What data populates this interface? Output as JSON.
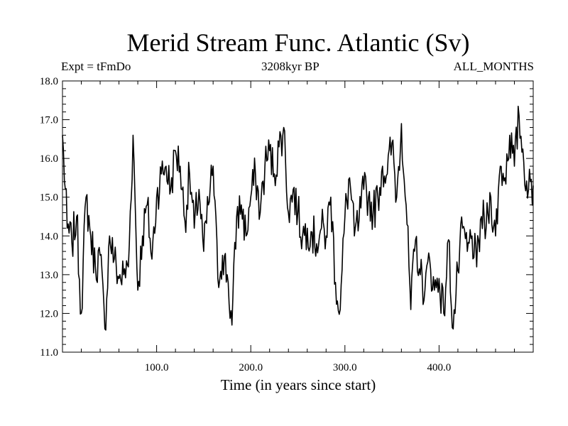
{
  "header": {
    "title": "Merid Stream Func. Atlantic (Sv)",
    "expt": "Expt = tFmDo",
    "period": "3208kyr BP",
    "months": "ALL_MONTHS"
  },
  "chart_data": {
    "type": "line",
    "title": "Merid Stream Func. Atlantic (Sv)",
    "xlabel": "Time (in years since start)",
    "ylabel": "",
    "xlim": [
      0,
      500
    ],
    "ylim": [
      11.0,
      18.0
    ],
    "xticks": [
      100,
      200,
      300,
      400
    ],
    "xtick_labels": [
      "100.0",
      "200.0",
      "300.0",
      "400.0"
    ],
    "yticks": [
      11,
      12,
      13,
      14,
      15,
      16,
      17,
      18
    ],
    "ytick_labels": [
      "11.0",
      "12.0",
      "13.0",
      "14.0",
      "15.0",
      "16.0",
      "17.0",
      "18.0"
    ],
    "grid": false,
    "series": [
      {
        "name": "Merid Stream Func. Atlantic",
        "x": [
          0,
          5,
          10,
          15,
          20,
          25,
          30,
          35,
          40,
          45,
          50,
          55,
          60,
          65,
          70,
          75,
          80,
          85,
          90,
          95,
          100,
          105,
          110,
          115,
          120,
          125,
          130,
          135,
          140,
          145,
          150,
          155,
          160,
          165,
          170,
          175,
          180,
          185,
          190,
          195,
          200,
          205,
          210,
          215,
          220,
          225,
          230,
          235,
          240,
          245,
          250,
          255,
          260,
          265,
          270,
          275,
          280,
          285,
          290,
          295,
          300,
          305,
          310,
          315,
          320,
          325,
          330,
          335,
          340,
          345,
          350,
          355,
          360,
          365,
          370,
          375,
          380,
          385,
          390,
          395,
          400,
          405,
          410,
          415,
          420,
          425,
          430,
          435,
          440,
          445,
          450,
          455,
          460,
          465,
          470,
          475,
          480,
          485,
          490,
          495,
          500
        ],
        "values": [
          16.6,
          14.2,
          13.8,
          14.5,
          12.0,
          15.0,
          14.0,
          13.2,
          13.5,
          11.6,
          14.0,
          13.4,
          12.9,
          13.0,
          13.2,
          16.6,
          12.6,
          14.0,
          14.8,
          13.4,
          15.0,
          15.6,
          15.8,
          15.2,
          16.2,
          15.8,
          14.4,
          15.6,
          14.2,
          15.2,
          13.6,
          14.8,
          15.8,
          12.9,
          13.5,
          13.0,
          11.7,
          14.5,
          14.8,
          14.0,
          15.0,
          15.6,
          14.6,
          15.8,
          16.2,
          15.6,
          16.3,
          16.8,
          14.6,
          15.2,
          14.6,
          14.0,
          14.2,
          14.1,
          13.8,
          14.2,
          14.0,
          15.0,
          12.8,
          12.1,
          14.5,
          15.5,
          14.0,
          14.4,
          15.2,
          15.0,
          14.6,
          15.0,
          15.8,
          15.6,
          16.4,
          15.0,
          16.9,
          14.8,
          12.1,
          13.9,
          13.0,
          12.6,
          13.4,
          12.6,
          12.9,
          12.0,
          13.9,
          11.6,
          13.1,
          14.2,
          13.6,
          14.0,
          13.2,
          14.5,
          14.2,
          15.0,
          14.0,
          15.8,
          15.5,
          16.6,
          15.8,
          17.1,
          15.9,
          15.2,
          15.3
        ]
      }
    ]
  }
}
